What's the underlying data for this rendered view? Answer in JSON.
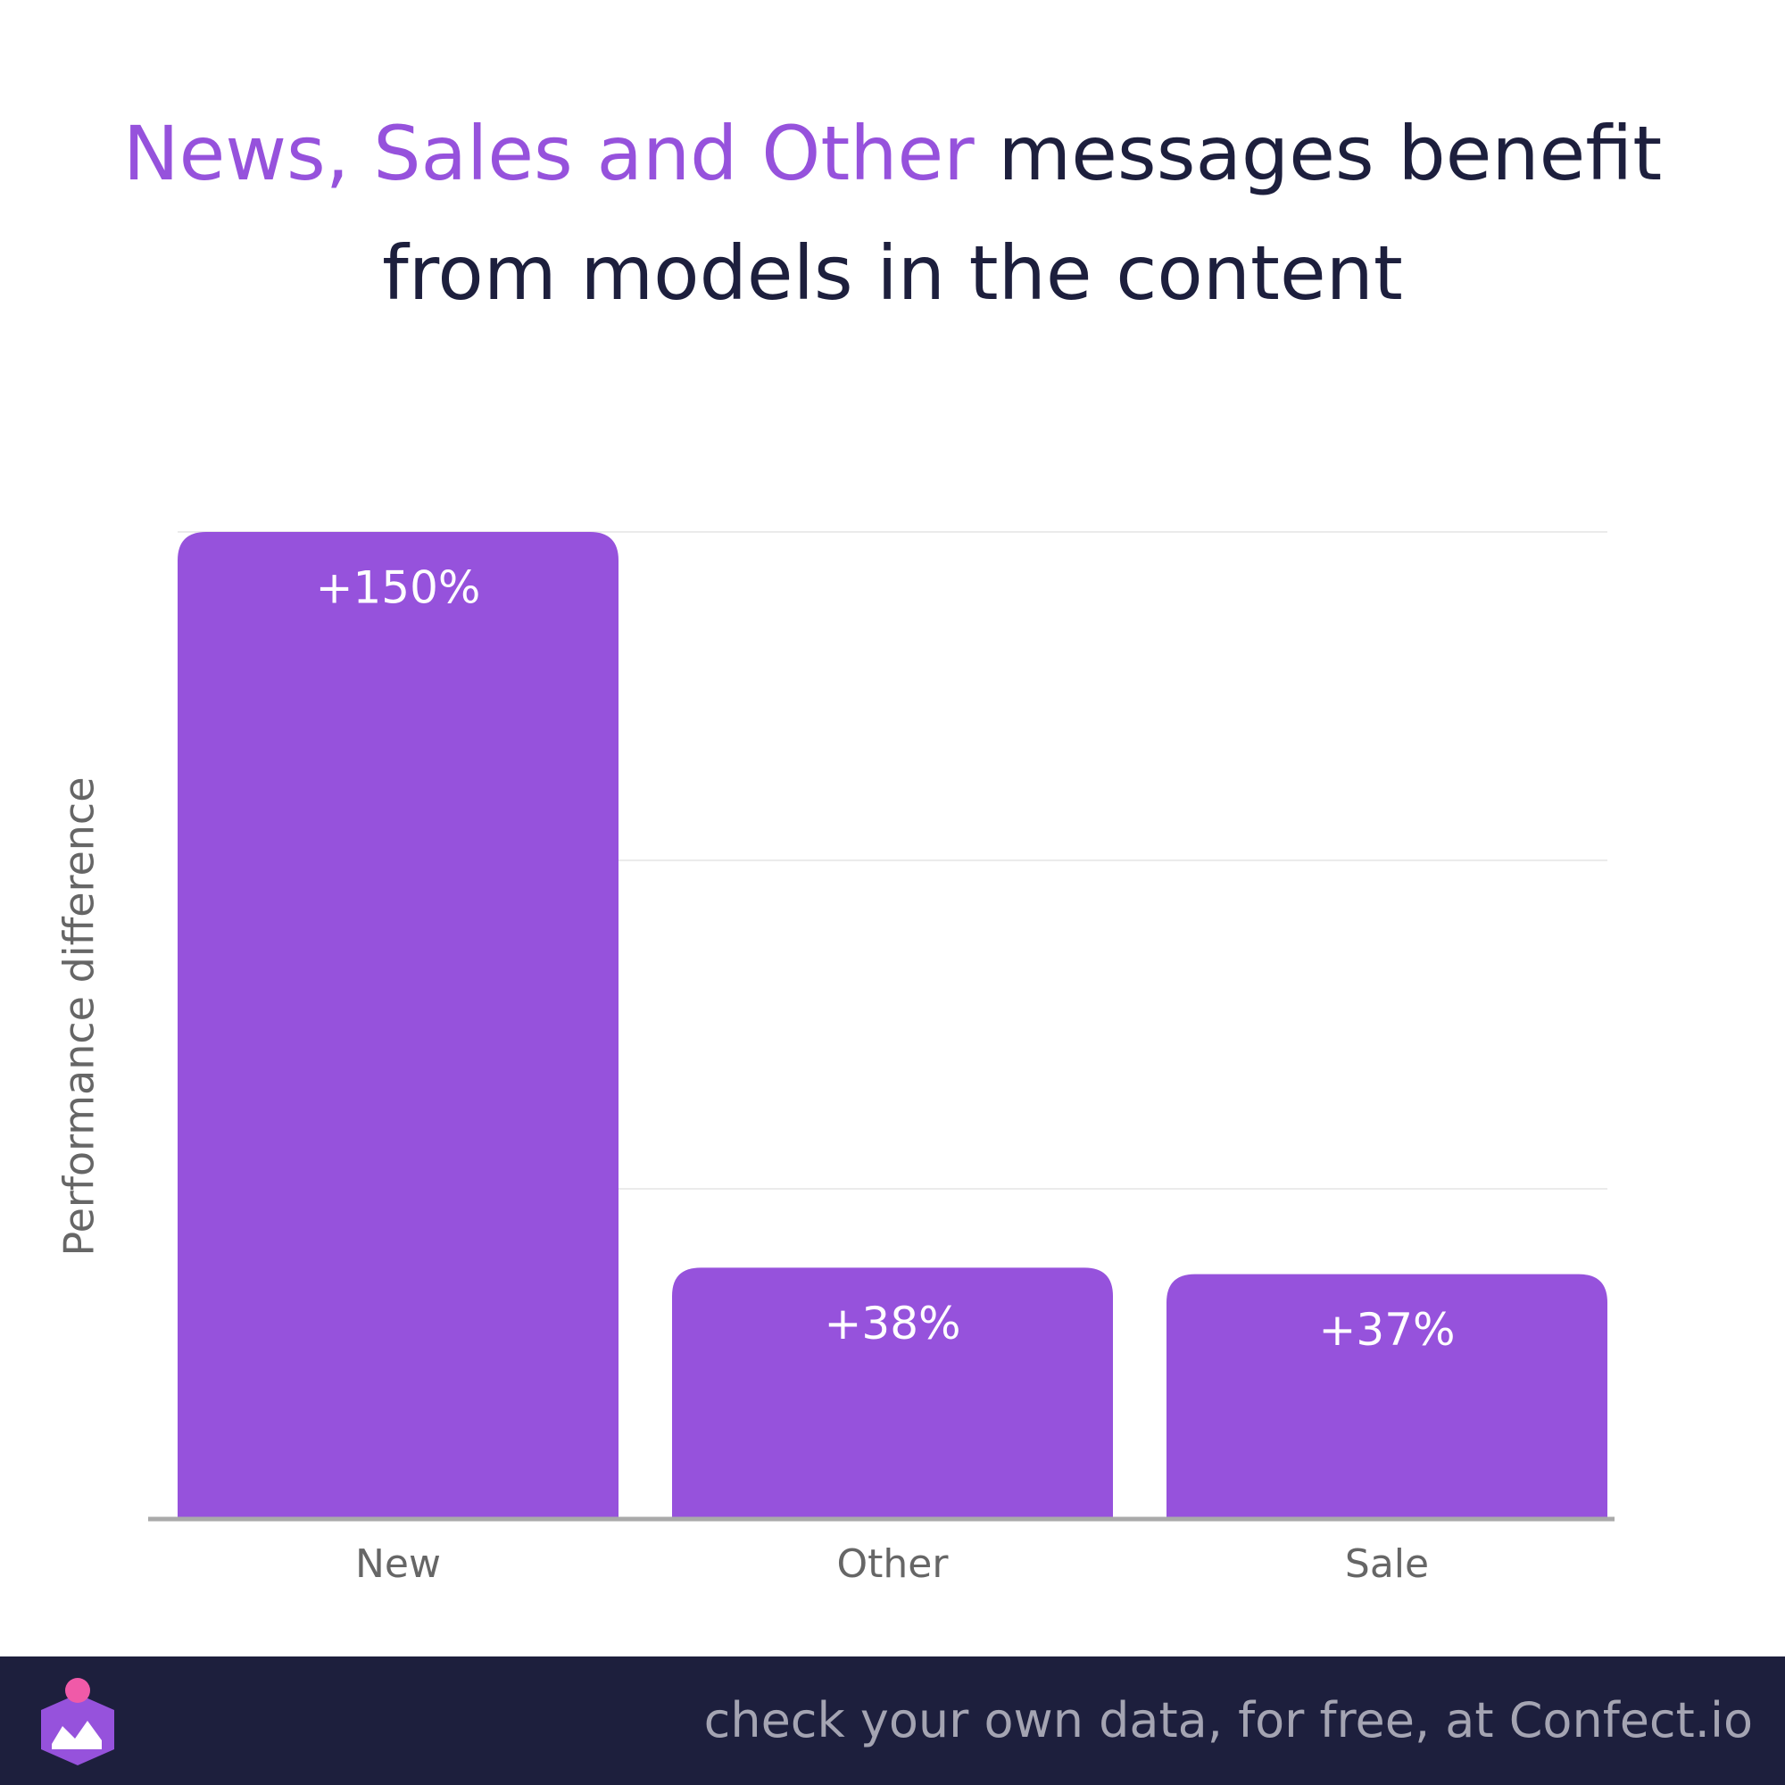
{
  "chart_data": {
    "type": "bar",
    "title": {
      "highlight": "News, Sales and Other",
      "rest": "messages benefit from models in the content"
    },
    "y_label": "Performance difference",
    "categories": [
      "New",
      "Other",
      "Sale"
    ],
    "values": [
      150,
      38,
      37
    ],
    "value_labels": [
      "+150%",
      "+38%",
      "+37%"
    ],
    "color": "#9652dc",
    "highlight_color": "#9652dc",
    "ylim": [
      0,
      150
    ],
    "yticks": [
      50,
      100,
      150
    ],
    "grid": true
  },
  "footer": {
    "text": "check your own data, for free, at Confect.io"
  }
}
